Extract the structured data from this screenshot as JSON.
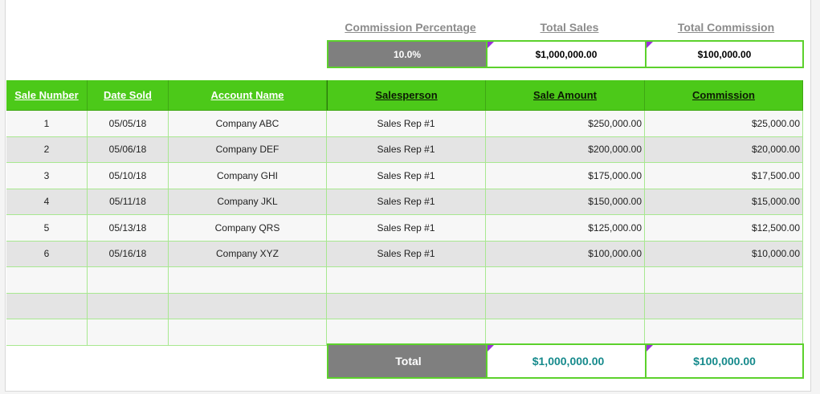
{
  "summary": {
    "headers": {
      "commission_percentage": "Commission Percentage",
      "total_sales": "Total Sales",
      "total_commission": "Total Commission"
    },
    "values": {
      "commission_percentage": "10.0%",
      "total_sales": "$1,000,000.00",
      "total_commission": "$100,000.00"
    }
  },
  "table": {
    "columns": [
      "Sale Number",
      "Date Sold",
      "Account Name",
      "Salesperson",
      "Sale Amount",
      "Commission"
    ],
    "rows": [
      [
        "1",
        "05/05/18",
        "Company ABC",
        "Sales Rep #1",
        "$250,000.00",
        "$25,000.00"
      ],
      [
        "2",
        "05/06/18",
        "Company DEF",
        "Sales Rep #1",
        "$200,000.00",
        "$20,000.00"
      ],
      [
        "3",
        "05/10/18",
        "Company GHI",
        "Sales Rep #1",
        "$175,000.00",
        "$17,500.00"
      ],
      [
        "4",
        "05/11/18",
        "Company JKL",
        "Sales Rep #1",
        "$150,000.00",
        "$15,000.00"
      ],
      [
        "5",
        "05/13/18",
        "Company QRS",
        "Sales Rep #1",
        "$125,000.00",
        "$12,500.00"
      ],
      [
        "6",
        "05/16/18",
        "Company XYZ",
        "Sales Rep #1",
        "$100,000.00",
        "$10,000.00"
      ],
      [
        "",
        "",
        "",
        "",
        "",
        ""
      ],
      [
        "",
        "",
        "",
        "",
        "",
        ""
      ],
      [
        "",
        "",
        "",
        "",
        "",
        ""
      ]
    ]
  },
  "footer": {
    "label": "Total",
    "sale_amount": "$1,000,000.00",
    "commission": "$100,000.00"
  },
  "colors": {
    "header_green": "#4cc919",
    "border_green": "#5cd12c",
    "gray_cell": "#7f7f7f",
    "teal_text": "#168a8c",
    "marker_purple": "#9b30d9"
  }
}
